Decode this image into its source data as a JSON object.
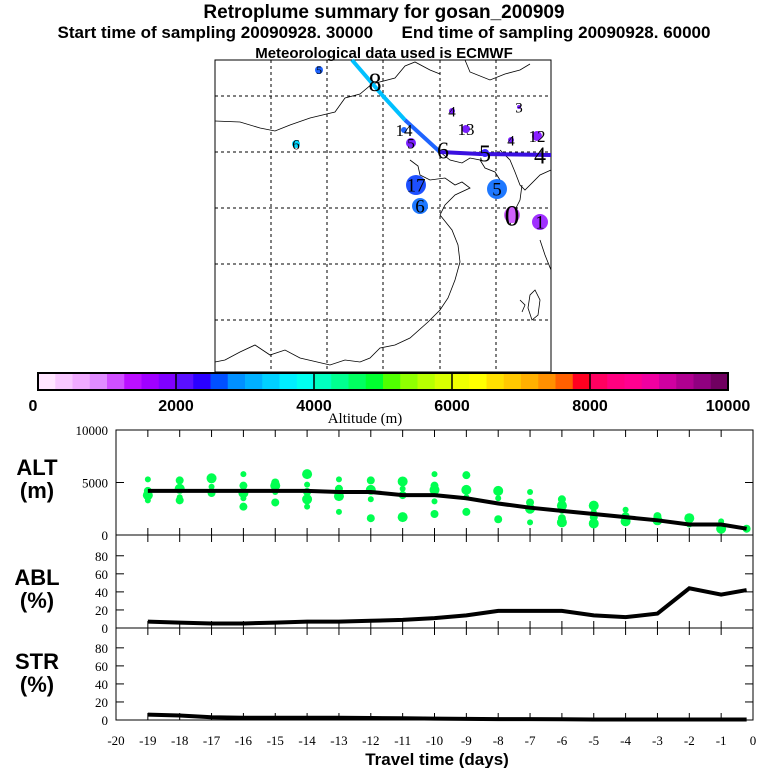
{
  "header": {
    "title": "Retroplume summary for gosan_200909",
    "start": "Start time of sampling 20090928. 30000",
    "end": "End time of sampling 20090928. 60000",
    "met": "Meteorological data used is ECMWF"
  },
  "map": {
    "labels": [
      "5",
      "8",
      "6",
      "4",
      "3",
      "14",
      "5",
      "13",
      "6",
      "5",
      "4",
      "12",
      "4",
      "17",
      "5",
      "6",
      "0",
      "1"
    ],
    "marker_colors": [
      "#1e64ff",
      "",
      "#00d8ff",
      "#7a20ff",
      "#7a20ff",
      "#1e64ff",
      "#7a20ff",
      "#7a20ff",
      "",
      "#3a20ff",
      "#7a20ff",
      "#8a20ff",
      "",
      "#1e50ff",
      "#1e78ff",
      "#1e78ff",
      "#d060ff",
      "#a030ff"
    ]
  },
  "colorbar": {
    "label": "Altitude (m)",
    "ticks": [
      "0",
      "2000",
      "4000",
      "6000",
      "8000",
      "10000"
    ],
    "colors": [
      "#ffe6ff",
      "#f8c8ff",
      "#f0aaff",
      "#e08cff",
      "#d050ff",
      "#bb10ff",
      "#a000ff",
      "#8000ff",
      "#5a10ff",
      "#2a00ff",
      "#0050ff",
      "#0090ff",
      "#00b0ff",
      "#00d0ff",
      "#00eeff",
      "#00fff0",
      "#00ffc0",
      "#00ff90",
      "#00ff60",
      "#00ff30",
      "#50ff00",
      "#90ff00",
      "#b8ff00",
      "#d8ff00",
      "#f0ff00",
      "#ffff00",
      "#ffe000",
      "#ffc800",
      "#ffb000",
      "#ff9000",
      "#ff6000",
      "#ff0020",
      "#ff0060",
      "#ff0080",
      "#ff0090",
      "#f000a0",
      "#d000a0",
      "#b00090",
      "#900080",
      "#700060"
    ]
  },
  "chart_data": [
    {
      "type": "line",
      "panel": "ALT",
      "ylabel": "ALT\n(m)",
      "ylabel_lines": [
        "ALT",
        "(m)"
      ],
      "ylim": [
        0,
        10000
      ],
      "yticks": [
        "0",
        "5000",
        "10000"
      ],
      "x": [
        -19,
        -18,
        -17,
        -16,
        -15,
        -14,
        -13,
        -12,
        -11,
        -10,
        -9,
        -8,
        -7,
        -6,
        -5,
        -4,
        -3,
        -2,
        -1,
        -0.2
      ],
      "values": [
        4200,
        4200,
        4200,
        4200,
        4200,
        4200,
        4100,
        4100,
        3800,
        3800,
        3500,
        3000,
        2600,
        2300,
        2000,
        1700,
        1400,
        1000,
        1000,
        600
      ],
      "scatter": [
        [
          5300,
          4200,
          3800,
          3300
        ],
        [
          5200,
          4400,
          3600,
          3300
        ],
        [
          5400,
          4600,
          4000
        ],
        [
          5800,
          4700,
          4000,
          3500,
          2700
        ],
        [
          5000,
          4700,
          4100,
          3100
        ],
        [
          5800,
          4800,
          4100,
          3400,
          2700
        ],
        [
          5300,
          4400,
          3700,
          2200
        ],
        [
          5200,
          4300,
          3400,
          1600
        ],
        [
          5100,
          4400,
          3800,
          1700
        ],
        [
          5800,
          4700,
          4300,
          3200,
          2000
        ],
        [
          5700,
          4300,
          3600,
          2200
        ],
        [
          4200,
          3500,
          1500
        ],
        [
          4100,
          3100,
          2500,
          1200
        ],
        [
          3400,
          2800,
          2300,
          1600,
          1200
        ],
        [
          2800,
          2200,
          1700,
          1100
        ],
        [
          2400,
          1800,
          1300
        ],
        [
          1800,
          1400
        ],
        [
          1600,
          1000
        ],
        [
          1300,
          900,
          600
        ],
        [
          600
        ]
      ]
    },
    {
      "type": "line",
      "panel": "ABL",
      "ylabel_lines": [
        "ABL",
        "(%)"
      ],
      "ylim": [
        0,
        103
      ],
      "yticks": [
        "0",
        "20",
        "40",
        "60",
        "80"
      ],
      "x": [
        -19,
        -18,
        -17,
        -16,
        -15,
        -14,
        -13,
        -12,
        -11,
        -10,
        -9,
        -8,
        -7,
        -6,
        -5,
        -4,
        -3,
        -2,
        -1,
        -0.2
      ],
      "values": [
        7,
        6,
        5,
        5,
        6,
        7,
        7,
        8,
        9,
        11,
        14,
        19,
        19,
        19,
        14,
        12,
        16,
        44,
        37,
        42
      ]
    },
    {
      "type": "line",
      "panel": "STR",
      "ylabel_lines": [
        "STR",
        "(%)"
      ],
      "ylim": [
        0,
        102
      ],
      "yticks": [
        "0",
        "20",
        "40",
        "60",
        "80"
      ],
      "x": [
        -19,
        -18,
        -17,
        -16,
        -15,
        -14,
        -13,
        -12,
        -11,
        -10,
        -9,
        -8,
        -7,
        -6,
        -5,
        -4,
        -3,
        -2,
        -1,
        -0.2
      ],
      "values": [
        6,
        5,
        3,
        2.5,
        2.5,
        2.5,
        2.5,
        2.2,
        2,
        1.5,
        1.2,
        1,
        1,
        0.8,
        0.6,
        0.5,
        0.5,
        0.5,
        0.5,
        0.5
      ]
    }
  ],
  "xaxis": {
    "label": "Travel time (days)",
    "ticks": [
      "-20",
      "-19",
      "-18",
      "-17",
      "-16",
      "-15",
      "-14",
      "-13",
      "-12",
      "-11",
      "-10",
      "-9",
      "-8",
      "-7",
      "-6",
      "-5",
      "-4",
      "-3",
      "-2",
      "-1",
      "0"
    ],
    "xlim": [
      -20,
      0
    ]
  },
  "panel_labels": [
    [
      "ALT",
      "(m)"
    ],
    [
      "ABL",
      "(%)"
    ],
    [
      "STR",
      "(%)"
    ]
  ]
}
